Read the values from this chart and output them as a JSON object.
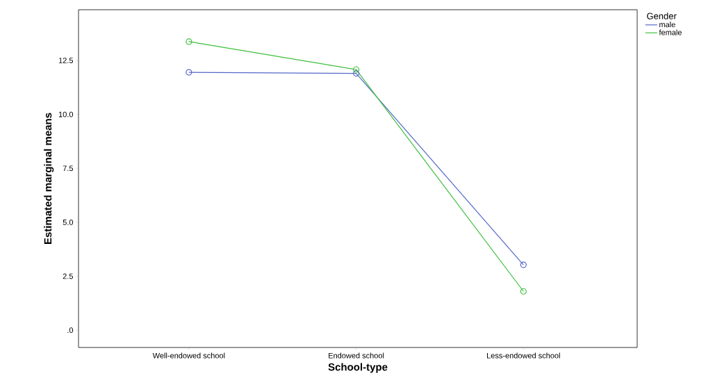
{
  "chart_data": {
    "type": "line",
    "xlabel": "School-type",
    "ylabel": "Estimated marginal means",
    "legend_title": "Gender",
    "categories": [
      "Well-endowed school",
      "Endowed school",
      "Less-endowed school"
    ],
    "series": [
      {
        "name": "male",
        "color": "#5566c8",
        "values": [
          11.95,
          11.9,
          3.03
        ]
      },
      {
        "name": "female",
        "color": "#3cbf3c",
        "values": [
          13.37,
          12.08,
          1.8
        ]
      }
    ],
    "ylim": [
      -0.8,
      14.85
    ],
    "yticks": [
      {
        "value": 0,
        "label": ".0"
      },
      {
        "value": 2.5,
        "label": "2.5"
      },
      {
        "value": 5,
        "label": "5.0"
      },
      {
        "value": 7.5,
        "label": "7.5"
      },
      {
        "value": 10,
        "label": "10.0"
      },
      {
        "value": 12.5,
        "label": "12.5"
      }
    ],
    "marker": "circle",
    "line_style": "solid",
    "legend": "top right",
    "grid": false
  }
}
